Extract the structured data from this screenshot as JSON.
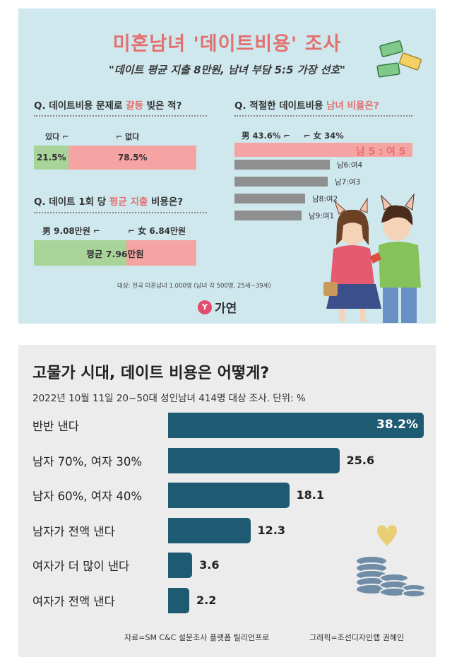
{
  "top": {
    "title_main": "미혼남녀 '데이트비용' 조사",
    "title_sub": "\"데이트 평균 지출 8만원, 남녀 부담 5:5 가장 선호\"",
    "footnote": "대상: 전국 미혼남녀 1,000명 (남녀 각 500명, 25세~39세)",
    "logo": "가연",
    "logo_mark": "Y",
    "q1": {
      "prefix": "Q. 데이트비용 문제로 ",
      "highlight": "갈등",
      "suffix": " 빚은 적?",
      "label_yes": "있다",
      "label_no": "없다"
    },
    "q2": {
      "prefix": "Q. 데이트 1회 당 ",
      "highlight": "평균 지출",
      "suffix": " 비용은?",
      "label_male": "男 9.08만원",
      "label_female": "女 6.84만원",
      "center_label": "평균 7.96만원"
    },
    "q3": {
      "prefix": "Q. 적절한 데이트비용 ",
      "highlight": "남녀 비율은?",
      "label_male": "男 43.6%",
      "label_female": "女 34%"
    }
  },
  "bottom": {
    "title": "고물가 시대, 데이트 비용은 어떻게?",
    "subtitle": "2022년 10월 11일 20~50대 성인남녀 414명 대상 조사. 단위: %",
    "source_left": "자료=SM C&C 설문조사 플랫폼 틸리언프로",
    "source_right": "그래픽=조선디자인랩 권혜인"
  },
  "chart_data": [
    {
      "type": "bar",
      "orientation": "horizontal-stacked",
      "title": "데이트비용 문제로 갈등 빚은 적?",
      "categories": [
        "있다",
        "없다"
      ],
      "values": [
        21.5,
        78.5
      ],
      "value_labels": [
        "21.5%",
        "78.5%"
      ],
      "unit": "%"
    },
    {
      "type": "bar",
      "orientation": "horizontal-stacked",
      "title": "데이트 1회 당 평균 지출 비용은?",
      "series": [
        {
          "name": "男",
          "value": 9.08,
          "label": "9.08만원"
        },
        {
          "name": "女",
          "value": 6.84,
          "label": "6.84만원"
        }
      ],
      "average": 7.96,
      "unit": "만원"
    },
    {
      "type": "bar",
      "orientation": "horizontal",
      "title": "적절한 데이트비용 남녀 비율은?",
      "categories": [
        "남 5 : 여 5",
        "남6:여4",
        "남7:여3",
        "남8:여2",
        "남9:여1"
      ],
      "values": [
        null,
        null,
        null,
        null,
        null
      ],
      "highlight_index": 0,
      "notes": [
        "男 43.6%",
        "女 34%"
      ]
    },
    {
      "type": "bar",
      "orientation": "horizontal",
      "title": "고물가 시대, 데이트 비용은 어떻게?",
      "categories": [
        "반반 낸다",
        "남자 70%, 여자 30%",
        "남자 60%, 여자 40%",
        "남자가 전액 낸다",
        "여자가 더 많이 낸다",
        "여자가 전액 낸다"
      ],
      "values": [
        38.2,
        25.6,
        18.1,
        12.3,
        3.6,
        2.2
      ],
      "value_labels": [
        "38.2%",
        "25.6",
        "18.1",
        "12.3",
        "3.6",
        "2.2"
      ],
      "xlim": [
        0,
        38.2
      ],
      "unit": "%",
      "bar_color": "#1f5a73"
    }
  ]
}
